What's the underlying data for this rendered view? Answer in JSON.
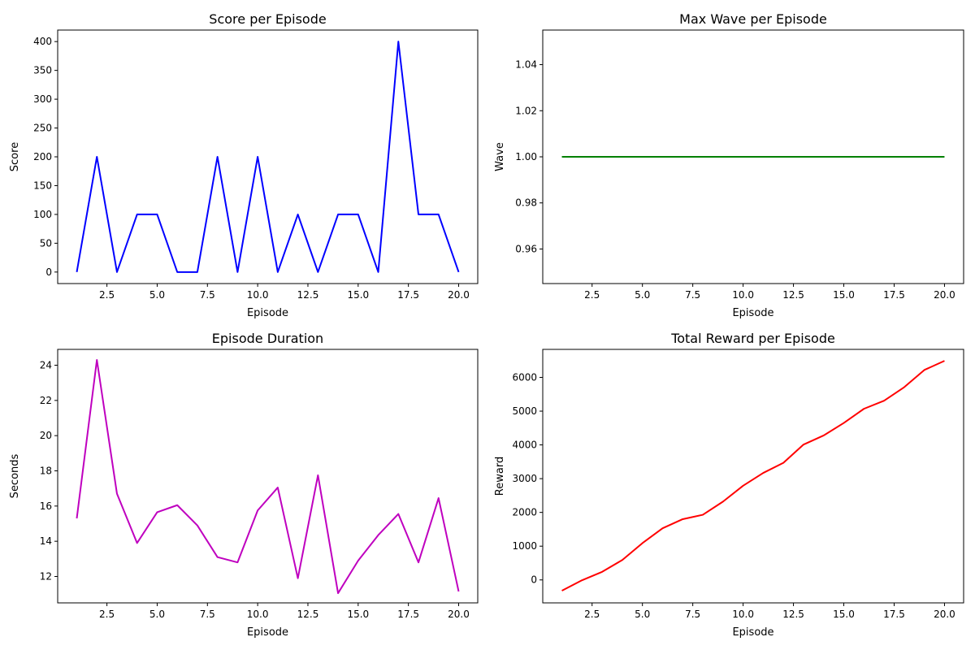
{
  "chart_data": [
    {
      "type": "line",
      "title": "Score per Episode",
      "xlabel": "Episode",
      "ylabel": "Score",
      "xlim": [
        0.05,
        20.95
      ],
      "ylim": [
        -20,
        420
      ],
      "xticks": [
        2.5,
        5.0,
        7.5,
        10.0,
        12.5,
        15.0,
        17.5,
        20.0
      ],
      "xtick_labels": [
        "2.5",
        "5.0",
        "7.5",
        "10.0",
        "12.5",
        "15.0",
        "17.5",
        "20.0"
      ],
      "yticks": [
        0,
        50,
        100,
        150,
        200,
        250,
        300,
        350,
        400
      ],
      "ytick_labels": [
        "0",
        "50",
        "100",
        "150",
        "200",
        "250",
        "300",
        "350",
        "400"
      ],
      "grid": false,
      "color": "#0000ff",
      "x": [
        1,
        2,
        3,
        4,
        5,
        6,
        7,
        8,
        9,
        10,
        11,
        12,
        13,
        14,
        15,
        16,
        17,
        18,
        19,
        20
      ],
      "series": [
        {
          "values": [
            0,
            200,
            0,
            100,
            100,
            0,
            0,
            200,
            0,
            200,
            0,
            100,
            0,
            100,
            100,
            0,
            400,
            100,
            100,
            0
          ]
        }
      ]
    },
    {
      "type": "line",
      "title": "Max Wave per Episode",
      "xlabel": "Episode",
      "ylabel": "Wave",
      "xlim": [
        0.05,
        20.95
      ],
      "ylim": [
        0.945,
        1.055
      ],
      "xticks": [
        2.5,
        5.0,
        7.5,
        10.0,
        12.5,
        15.0,
        17.5,
        20.0
      ],
      "xtick_labels": [
        "2.5",
        "5.0",
        "7.5",
        "10.0",
        "12.5",
        "15.0",
        "17.5",
        "20.0"
      ],
      "yticks": [
        0.96,
        0.98,
        1.0,
        1.02,
        1.04
      ],
      "ytick_labels": [
        "0.96",
        "0.98",
        "1.00",
        "1.02",
        "1.04"
      ],
      "grid": false,
      "color": "#008000",
      "x": [
        1,
        2,
        3,
        4,
        5,
        6,
        7,
        8,
        9,
        10,
        11,
        12,
        13,
        14,
        15,
        16,
        17,
        18,
        19,
        20
      ],
      "series": [
        {
          "values": [
            1,
            1,
            1,
            1,
            1,
            1,
            1,
            1,
            1,
            1,
            1,
            1,
            1,
            1,
            1,
            1,
            1,
            1,
            1,
            1
          ]
        }
      ]
    },
    {
      "type": "line",
      "title": "Episode Duration",
      "xlabel": "Episode",
      "ylabel": "Seconds",
      "xlim": [
        0.05,
        20.95
      ],
      "ylim": [
        10.5,
        24.9
      ],
      "xticks": [
        2.5,
        5.0,
        7.5,
        10.0,
        12.5,
        15.0,
        17.5,
        20.0
      ],
      "xtick_labels": [
        "2.5",
        "5.0",
        "7.5",
        "10.0",
        "12.5",
        "15.0",
        "17.5",
        "20.0"
      ],
      "yticks": [
        12,
        14,
        16,
        18,
        20,
        22,
        24
      ],
      "ytick_labels": [
        "12",
        "14",
        "16",
        "18",
        "20",
        "22",
        "24"
      ],
      "grid": false,
      "color": "#bf00bf",
      "x": [
        1,
        2,
        3,
        4,
        5,
        6,
        7,
        8,
        9,
        10,
        11,
        12,
        13,
        14,
        15,
        16,
        17,
        18,
        19,
        20
      ],
      "series": [
        {
          "values": [
            15.3,
            24.3,
            16.7,
            13.9,
            15.65,
            16.05,
            14.9,
            13.1,
            12.8,
            15.75,
            17.05,
            11.9,
            17.75,
            11.05,
            12.9,
            14.35,
            15.55,
            12.8,
            16.45,
            11.15
          ]
        }
      ]
    },
    {
      "type": "line",
      "title": "Total Reward per Episode",
      "xlabel": "Episode",
      "ylabel": "Reward",
      "xlim": [
        0.05,
        20.95
      ],
      "ylim": [
        -680,
        6830
      ],
      "xticks": [
        2.5,
        5.0,
        7.5,
        10.0,
        12.5,
        15.0,
        17.5,
        20.0
      ],
      "xtick_labels": [
        "2.5",
        "5.0",
        "7.5",
        "10.0",
        "12.5",
        "15.0",
        "17.5",
        "20.0"
      ],
      "yticks": [
        0,
        1000,
        2000,
        3000,
        4000,
        5000,
        6000
      ],
      "ytick_labels": [
        "0",
        "1000",
        "2000",
        "3000",
        "4000",
        "5000",
        "6000"
      ],
      "grid": false,
      "color": "#ff0000",
      "x": [
        1,
        2,
        3,
        4,
        5,
        6,
        7,
        8,
        9,
        10,
        11,
        12,
        13,
        14,
        15,
        16,
        17,
        18,
        19,
        20
      ],
      "series": [
        {
          "values": [
            -320,
            -10,
            240,
            590,
            1090,
            1530,
            1800,
            1930,
            2320,
            2790,
            3170,
            3470,
            4010,
            4280,
            4650,
            5070,
            5310,
            5710,
            6220,
            6490
          ]
        }
      ]
    }
  ]
}
